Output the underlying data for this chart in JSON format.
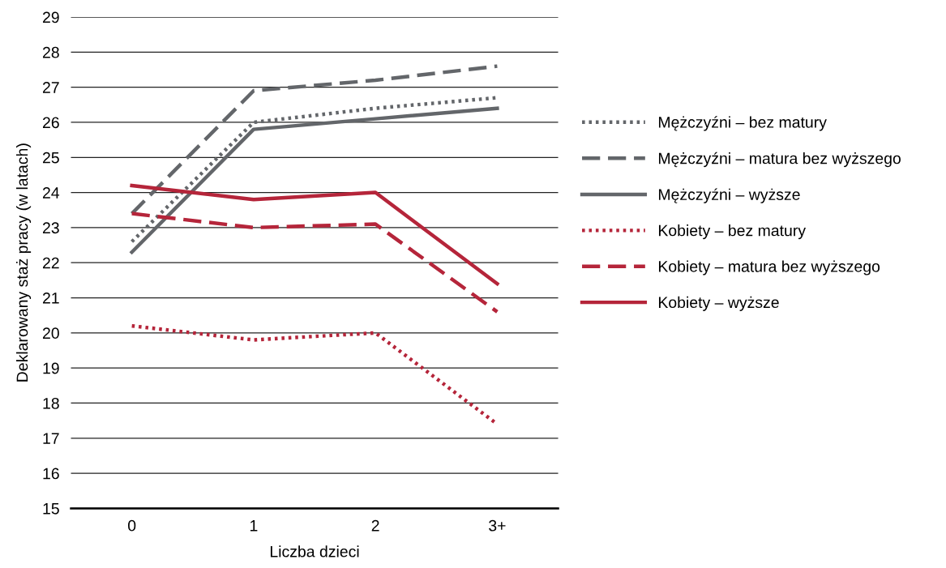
{
  "chart_data": {
    "type": "line",
    "xlabel": "Liczba dzieci",
    "ylabel": "Deklarowany staż pracy (w latach)",
    "categories": [
      "0",
      "1",
      "2",
      "3+"
    ],
    "ylim": [
      15,
      29
    ],
    "yticks": [
      15,
      16,
      17,
      18,
      19,
      20,
      21,
      22,
      23,
      24,
      25,
      26,
      27,
      28,
      29
    ],
    "grid": "y",
    "legend": "right",
    "marker": "none",
    "series": [
      {
        "name": "Mężczyźni – bez matury",
        "color": "#63666a",
        "line_style": "dotted",
        "values": [
          22.6,
          26.0,
          26.4,
          26.7
        ]
      },
      {
        "name": "Mężczyźni – matura bez wyższego",
        "color": "#63666a",
        "line_style": "dashed",
        "values": [
          23.4,
          26.9,
          27.2,
          27.6
        ]
      },
      {
        "name": "Mężczyźni – wyższe",
        "color": "#63666a",
        "line_style": "solid",
        "values": [
          22.3,
          25.8,
          26.1,
          26.4
        ]
      },
      {
        "name": "Kobiety – bez matury",
        "color": "#b5253a",
        "line_style": "dotted",
        "values": [
          20.2,
          19.8,
          20.0,
          17.4
        ]
      },
      {
        "name": "Kobiety – matura bez wyższego",
        "color": "#b5253a",
        "line_style": "dashed",
        "values": [
          23.4,
          23.0,
          23.1,
          20.6
        ]
      },
      {
        "name": "Kobiety – wyższe",
        "color": "#b5253a",
        "line_style": "solid",
        "values": [
          24.2,
          23.8,
          24.0,
          21.4
        ]
      }
    ]
  }
}
